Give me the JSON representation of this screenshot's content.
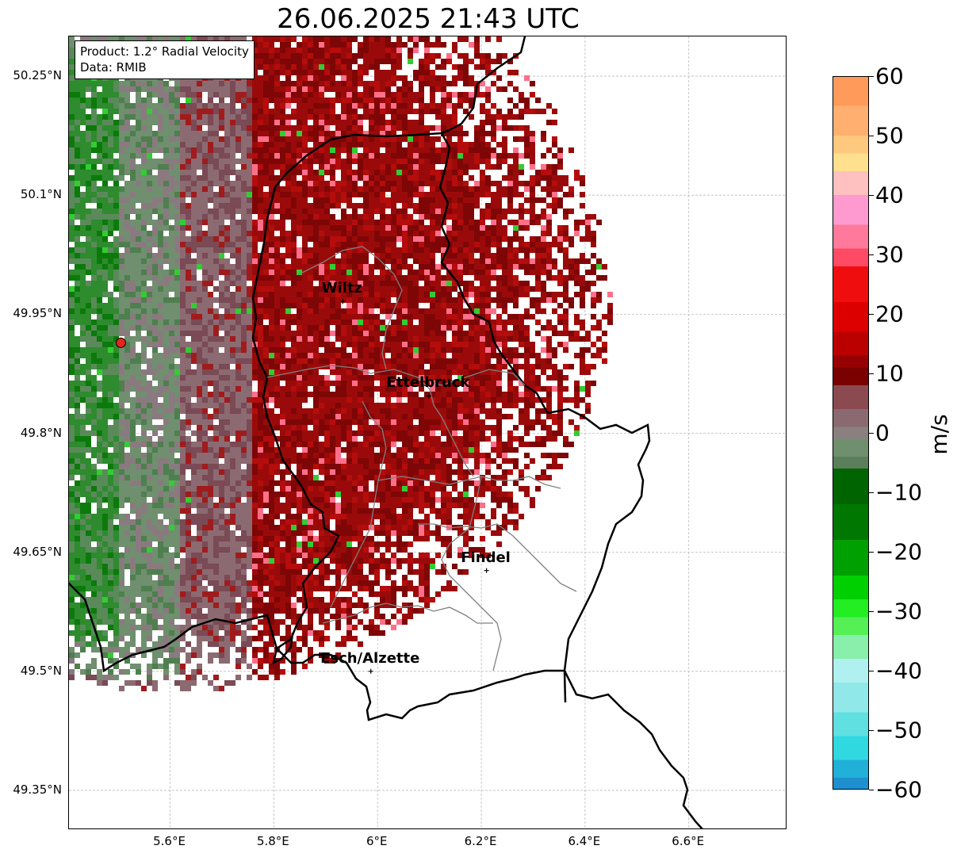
{
  "title": "26.06.2025 21:43 UTC",
  "info": {
    "product": "Product: 1.2° Radial Velocity",
    "data": "Data: RMIB"
  },
  "map": {
    "lat_ticks": [
      "50.25°N",
      "50.1°N",
      "49.95°N",
      "49.8°N",
      "49.65°N",
      "49.5°N",
      "49.35°N"
    ],
    "lon_ticks": [
      "5.6°E",
      "5.8°E",
      "6°E",
      "6.2°E",
      "6.4°E",
      "6.6°E"
    ],
    "lat_values": [
      50.25,
      50.1,
      49.95,
      49.8,
      49.65,
      49.5,
      49.35
    ],
    "lon_values": [
      5.6,
      5.8,
      6.0,
      6.2,
      6.4,
      6.6
    ],
    "extent": {
      "lon_min": 5.405,
      "lon_max": 6.79,
      "lat_min": 49.3,
      "lat_max": 50.3
    },
    "radar_site": {
      "lon": 5.505,
      "lat": 49.914
    },
    "cities": [
      {
        "name": "Wiltz",
        "lon": 5.933,
        "lat": 49.966
      },
      {
        "name": "Ettelbruck",
        "lon": 6.099,
        "lat": 49.847
      },
      {
        "name": "Findel",
        "lon": 6.21,
        "lat": 49.627
      },
      {
        "name": "Esch/Alzette",
        "lon": 5.987,
        "lat": 49.5
      }
    ]
  },
  "colorbar": {
    "unit": "m/s",
    "ticks": [
      "60",
      "50",
      "40",
      "30",
      "20",
      "10",
      "0",
      "−10",
      "−20",
      "−30",
      "−40",
      "−50",
      "−60"
    ],
    "tick_values": [
      60,
      50,
      40,
      30,
      20,
      10,
      0,
      -10,
      -20,
      -30,
      -40,
      -50,
      -60
    ],
    "min": -60,
    "max": 60
  }
}
